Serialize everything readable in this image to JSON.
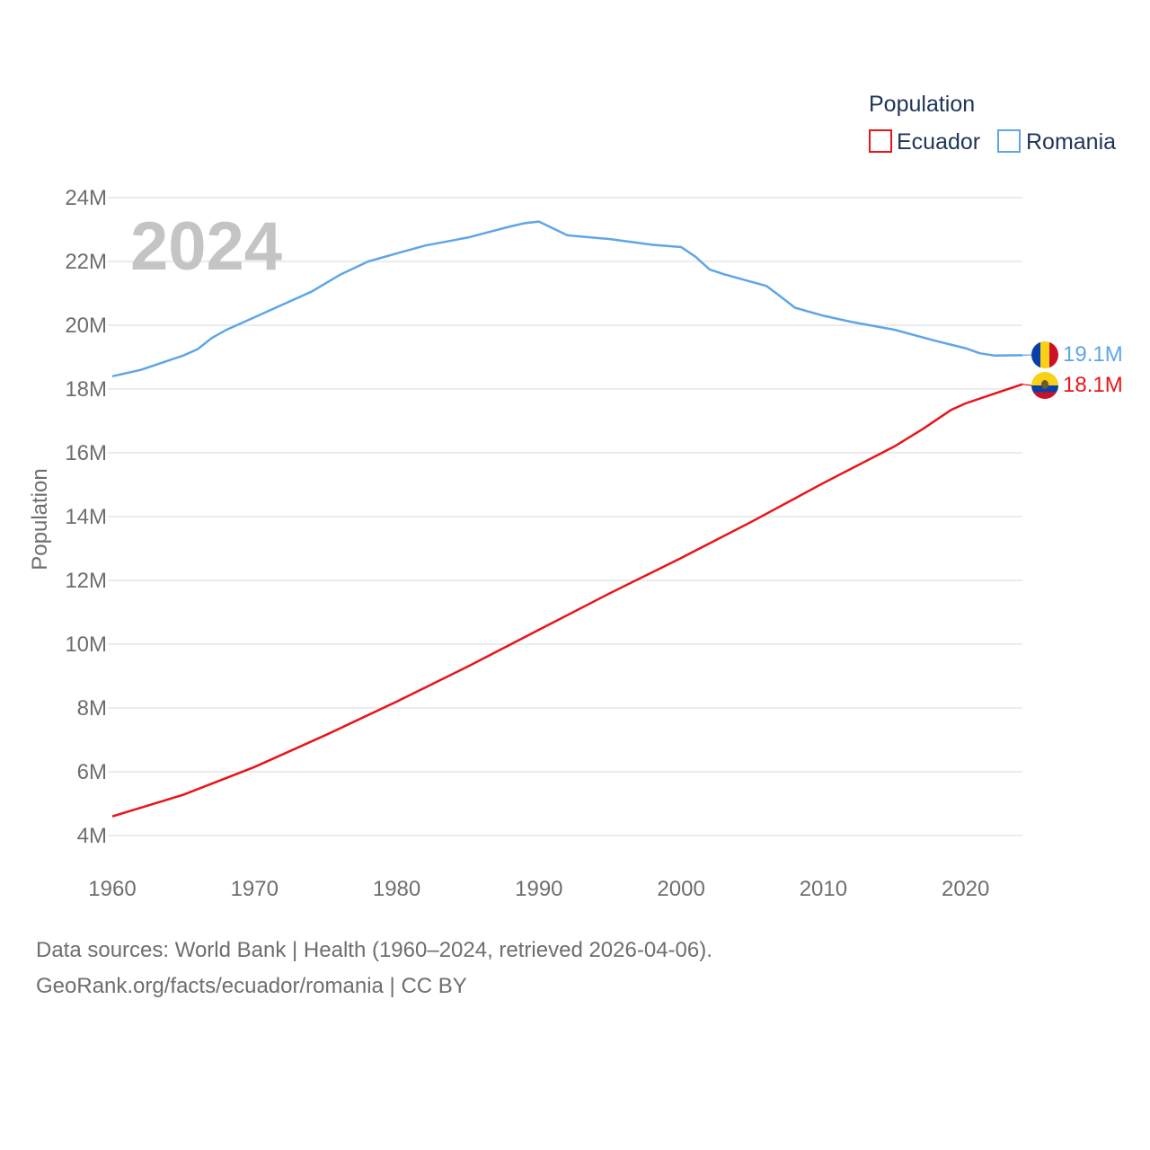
{
  "chart_data": {
    "type": "line",
    "title": "Population",
    "year_label": "2024",
    "ylabel": "Population",
    "ylim": [
      4000000,
      24000000
    ],
    "xlim": [
      1960,
      2024
    ],
    "y_ticks": [
      {
        "value": 4000000,
        "label": "4M"
      },
      {
        "value": 6000000,
        "label": "6M"
      },
      {
        "value": 8000000,
        "label": "8M"
      },
      {
        "value": 10000000,
        "label": "10M"
      },
      {
        "value": 12000000,
        "label": "12M"
      },
      {
        "value": 14000000,
        "label": "14M"
      },
      {
        "value": 16000000,
        "label": "16M"
      },
      {
        "value": 18000000,
        "label": "18M"
      },
      {
        "value": 20000000,
        "label": "20M"
      },
      {
        "value": 22000000,
        "label": "22M"
      },
      {
        "value": 24000000,
        "label": "24M"
      }
    ],
    "x_ticks": [
      {
        "value": 1960,
        "label": "1960"
      },
      {
        "value": 1970,
        "label": "1970"
      },
      {
        "value": 1980,
        "label": "1980"
      },
      {
        "value": 1990,
        "label": "1990"
      },
      {
        "value": 2000,
        "label": "2000"
      },
      {
        "value": 2010,
        "label": "2010"
      },
      {
        "value": 2020,
        "label": "2020"
      }
    ],
    "series": [
      {
        "name": "Ecuador",
        "color": "#e8141a",
        "end_label": "18.1M",
        "flag": "ecuador-flag-icon",
        "points": [
          [
            1960,
            4600000
          ],
          [
            1965,
            5280000
          ],
          [
            1970,
            6150000
          ],
          [
            1975,
            7150000
          ],
          [
            1980,
            8200000
          ],
          [
            1985,
            9300000
          ],
          [
            1990,
            10450000
          ],
          [
            1995,
            11600000
          ],
          [
            2000,
            12700000
          ],
          [
            2005,
            13850000
          ],
          [
            2010,
            15050000
          ],
          [
            2015,
            16200000
          ],
          [
            2017,
            16750000
          ],
          [
            2019,
            17350000
          ],
          [
            2020,
            17550000
          ],
          [
            2022,
            17850000
          ],
          [
            2024,
            18150000
          ]
        ]
      },
      {
        "name": "Romania",
        "color": "#5ea6e6",
        "end_label": "19.1M",
        "flag": "romania-flag-icon",
        "points": [
          [
            1960,
            18400000
          ],
          [
            1962,
            18600000
          ],
          [
            1965,
            19050000
          ],
          [
            1966,
            19250000
          ],
          [
            1967,
            19600000
          ],
          [
            1968,
            19850000
          ],
          [
            1970,
            20250000
          ],
          [
            1972,
            20650000
          ],
          [
            1974,
            21050000
          ],
          [
            1976,
            21580000
          ],
          [
            1978,
            22000000
          ],
          [
            1980,
            22250000
          ],
          [
            1982,
            22500000
          ],
          [
            1985,
            22750000
          ],
          [
            1988,
            23100000
          ],
          [
            1989,
            23200000
          ],
          [
            1990,
            23250000
          ],
          [
            1992,
            22820000
          ],
          [
            1995,
            22700000
          ],
          [
            1998,
            22520000
          ],
          [
            2000,
            22450000
          ],
          [
            2001,
            22150000
          ],
          [
            2002,
            21750000
          ],
          [
            2003,
            21600000
          ],
          [
            2006,
            21230000
          ],
          [
            2007,
            20900000
          ],
          [
            2008,
            20550000
          ],
          [
            2010,
            20300000
          ],
          [
            2012,
            20100000
          ],
          [
            2015,
            19860000
          ],
          [
            2018,
            19500000
          ],
          [
            2020,
            19280000
          ],
          [
            2021,
            19120000
          ],
          [
            2022,
            19050000
          ],
          [
            2024,
            19060000
          ]
        ]
      }
    ]
  },
  "legend": {
    "title": "Population",
    "items": [
      {
        "label": "Ecuador",
        "color": "#e8141a"
      },
      {
        "label": "Romania",
        "color": "#5ea6e6"
      }
    ]
  },
  "source": {
    "line1": "Data sources: World Bank | Health (1960–2024, retrieved 2026-04-06).",
    "line2": "GeoRank.org/facts/ecuador/romania | CC BY"
  }
}
